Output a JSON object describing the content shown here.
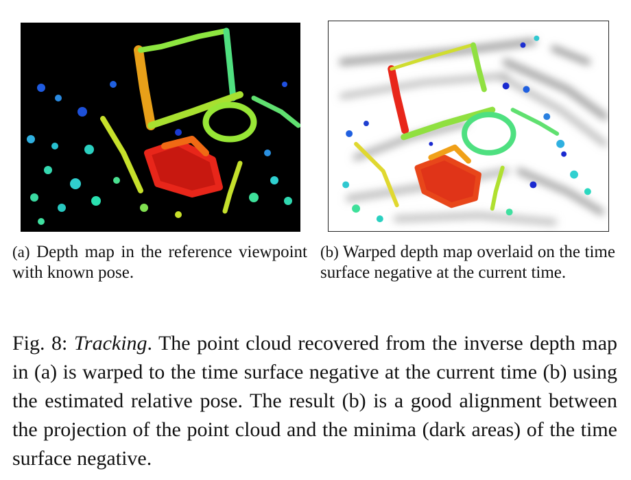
{
  "subfigures": [
    {
      "label": "(a)",
      "caption": "Depth map in the reference viewpoint with known pose."
    },
    {
      "label": "(b)",
      "caption": "Warped depth map overlaid on the time surface negative at the current time."
    }
  ],
  "figure_caption": {
    "label": "Fig. 8:",
    "title": "Tracking",
    "text": ". The point cloud recovered from the inverse depth map in (a) is warped to the time surface negative at the current time (b) using the estimated relative pose. The result (b) is a good alignment between the projection of the point cloud and the minima (dark areas) of the time surface negative."
  },
  "colors": {
    "depth_near": "#e8161a",
    "depth_mid": "#9ce32b",
    "depth_far": "#1f2fcf",
    "panel_a_background": "#000000",
    "panel_b_background": "#ffffff"
  }
}
